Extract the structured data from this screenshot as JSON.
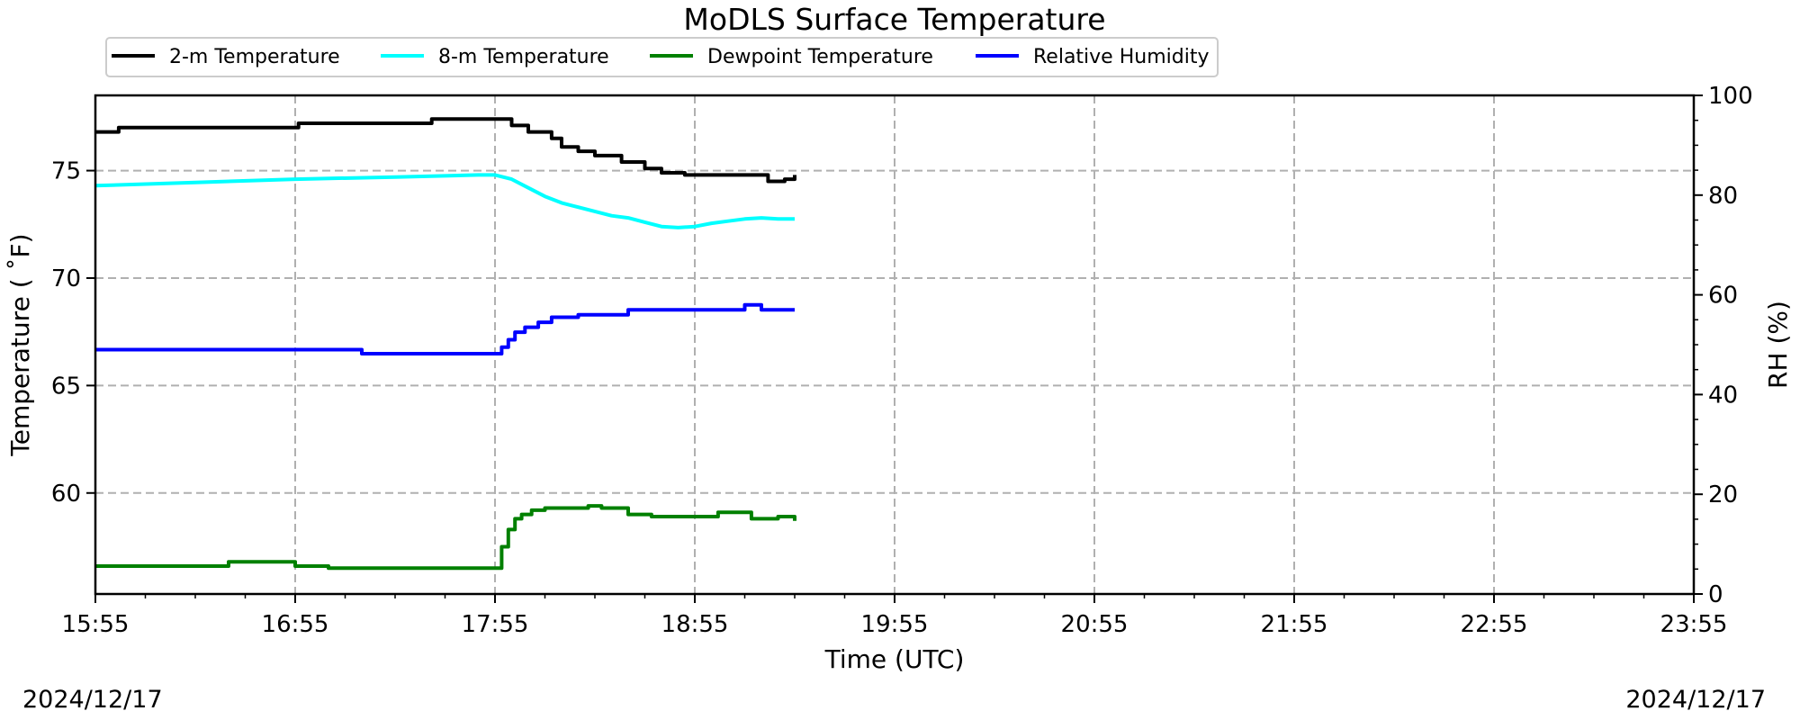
{
  "chart_data": {
    "type": "line",
    "title": "MoDLS Surface Temperature",
    "xlabel": "Time (UTC)",
    "ylabel": "Temperature ($^\\circ$F)",
    "ylabel_display": "Temperature ( ˚F)",
    "y2label": "RH (%)",
    "xlim": [
      "15:55",
      "23:55"
    ],
    "ylim": [
      55.3,
      78.5
    ],
    "y2lim": [
      0,
      100
    ],
    "x_ticks": [
      "15:55",
      "16:55",
      "17:55",
      "18:55",
      "19:55",
      "20:55",
      "21:55",
      "22:55",
      "23:55"
    ],
    "y_ticks": [
      60,
      65,
      70,
      75
    ],
    "y2_ticks": [
      0,
      20,
      40,
      60,
      80,
      100
    ],
    "grid": true,
    "legend_position": "top-left outside, single row",
    "start_date": "2024/12/17",
    "end_date": "2024/12/17",
    "series": [
      {
        "name": "2-m Temperature",
        "color": "#000000",
        "axis": "left",
        "style": "step",
        "x": [
          "15:55",
          "16:01",
          "16:02",
          "16:05",
          "16:17",
          "16:55",
          "16:56",
          "17:35",
          "17:36",
          "18:00",
          "18:05",
          "18:12",
          "18:15",
          "18:20",
          "18:25",
          "18:33",
          "18:40",
          "18:45",
          "18:52",
          "18:59",
          "19:12",
          "19:17",
          "19:22",
          "19:25"
        ],
        "y": [
          76.8,
          76.8,
          77.0,
          77.0,
          77.0,
          77.0,
          77.2,
          77.2,
          77.4,
          77.1,
          76.8,
          76.5,
          76.1,
          75.9,
          75.7,
          75.4,
          75.1,
          74.9,
          74.8,
          74.8,
          74.8,
          74.5,
          74.6,
          74.8
        ]
      },
      {
        "name": "8-m Temperature",
        "color": "#00ffff",
        "axis": "left",
        "style": "line",
        "x": [
          "15:55",
          "16:25",
          "16:55",
          "17:25",
          "17:50",
          "17:55",
          "18:00",
          "18:05",
          "18:10",
          "18:15",
          "18:20",
          "18:25",
          "18:30",
          "18:35",
          "18:40",
          "18:45",
          "18:50",
          "18:55",
          "19:00",
          "19:05",
          "19:10",
          "19:15",
          "19:20",
          "19:25"
        ],
        "y": [
          74.3,
          74.45,
          74.6,
          74.7,
          74.8,
          74.8,
          74.6,
          74.2,
          73.8,
          73.5,
          73.3,
          73.1,
          72.9,
          72.8,
          72.6,
          72.4,
          72.35,
          72.4,
          72.55,
          72.65,
          72.75,
          72.8,
          72.75,
          72.75
        ]
      },
      {
        "name": "Dewpoint Temperature",
        "color": "#008000",
        "axis": "left",
        "style": "step",
        "x": [
          "15:55",
          "16:25",
          "16:35",
          "16:55",
          "17:05",
          "17:40",
          "17:55",
          "17:57",
          "17:59",
          "18:01",
          "18:03",
          "18:06",
          "18:10",
          "18:16",
          "18:23",
          "18:27",
          "18:35",
          "18:42",
          "18:52",
          "19:02",
          "19:12",
          "19:20",
          "19:25"
        ],
        "y": [
          56.6,
          56.6,
          56.8,
          56.6,
          56.5,
          56.5,
          56.5,
          57.5,
          58.3,
          58.8,
          59.0,
          59.2,
          59.3,
          59.3,
          59.4,
          59.3,
          59.0,
          58.9,
          58.9,
          59.1,
          58.8,
          58.9,
          58.7
        ]
      },
      {
        "name": "Relative Humidity",
        "color": "#0000ff",
        "axis": "right",
        "style": "step",
        "x": [
          "15:55",
          "17:05",
          "17:15",
          "17:55",
          "17:57",
          "17:59",
          "18:01",
          "18:04",
          "18:08",
          "18:12",
          "18:20",
          "18:35",
          "18:52",
          "19:03",
          "19:10",
          "19:15",
          "19:25"
        ],
        "y": [
          49.0,
          49.0,
          48.2,
          48.2,
          49.5,
          51.0,
          52.5,
          53.5,
          54.5,
          55.5,
          56.0,
          57.0,
          57.0,
          57.0,
          58.0,
          57.0,
          57.0
        ]
      }
    ]
  }
}
